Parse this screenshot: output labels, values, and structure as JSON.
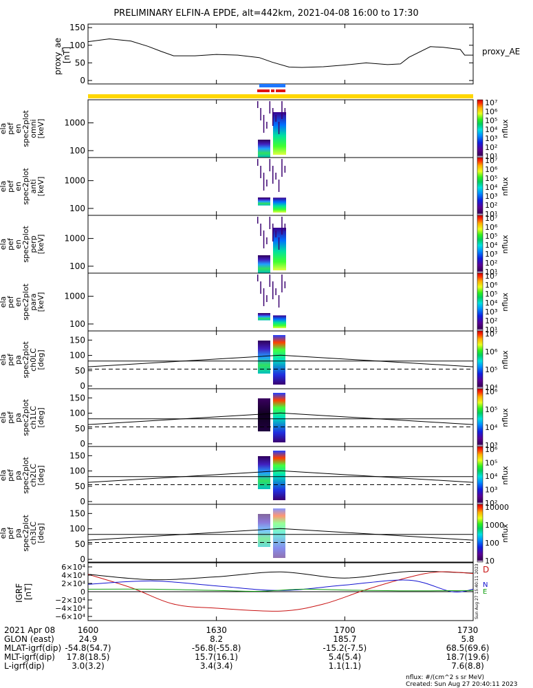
{
  "title": "PRELIMINARY ELFIN-A EPDE, alt=442km, 2021-04-08 16:00 to 17:30",
  "colors": {
    "frame": "#000000",
    "state_bar": "#ffd700",
    "science_blue": "#1e78ff",
    "science_red": "#e01010",
    "geo_x": "#c81010",
    "geo_y": "#1010d0",
    "geo_z": "#10a010",
    "geo_total": "#000000"
  },
  "chart_data": [
    {
      "type": "line",
      "panel": "proxy_ae",
      "ylabel": "proxy_ae [nT]",
      "right_label": "proxy_AE",
      "ylim": [
        0,
        160
      ],
      "yticks": [
        "0",
        "50",
        "100",
        "150"
      ],
      "x_minutes": [
        0,
        5,
        10,
        14,
        17,
        20,
        25,
        30,
        35,
        40,
        43,
        47,
        50,
        55,
        60,
        65,
        70,
        73,
        75,
        80,
        83,
        87,
        88,
        90
      ],
      "values": [
        110,
        118,
        112,
        97,
        83,
        70,
        70,
        74,
        72,
        65,
        52,
        38,
        37,
        39,
        44,
        50,
        45,
        47,
        66,
        96,
        94,
        88,
        72,
        72
      ]
    },
    {
      "type": "heatmap",
      "panel": "en_spec2plot_omni",
      "ylabel": "ela pef en spec2plot omni [keV]",
      "yticks": [
        "100",
        "1000"
      ],
      "colorbar_label": "nflux",
      "colorbar_ticks": [
        "10¹",
        "10²",
        "10³",
        "10⁴",
        "10⁵",
        "10⁶",
        "10⁷"
      ]
    },
    {
      "type": "heatmap",
      "panel": "en_spec2plot_anti",
      "ylabel": "ela pef en spec2plot anti [keV]",
      "yticks": [
        "100",
        "1000"
      ],
      "colorbar_label": "nflux",
      "colorbar_ticks": [
        "10¹",
        "10²",
        "10³",
        "10⁴",
        "10⁵",
        "10⁶",
        "10⁷"
      ]
    },
    {
      "type": "heatmap",
      "panel": "en_spec2plot_perp",
      "ylabel": "ela pef en spec2plot perp [keV]",
      "yticks": [
        "100",
        "1000"
      ],
      "colorbar_label": "nflux",
      "colorbar_ticks": [
        "10¹",
        "10²",
        "10³",
        "10⁴",
        "10⁵",
        "10⁶",
        "10⁷"
      ]
    },
    {
      "type": "heatmap",
      "panel": "en_spec2plot_para",
      "ylabel": "ela pef en spec2plot para [keV]",
      "yticks": [
        "100",
        "1000"
      ],
      "colorbar_label": "nflux",
      "colorbar_ticks": [
        "10¹",
        "10²",
        "10³",
        "10⁴",
        "10⁵",
        "10⁶",
        "10⁷"
      ]
    },
    {
      "type": "heatmap",
      "panel": "pa_spec2plot_ch0LC",
      "ylabel": "ela pef pa spec2plot ch0LC [deg]",
      "yticks": [
        "0",
        "50",
        "100",
        "150"
      ],
      "colorbar_label": "nflux",
      "colorbar_ticks": [
        "10⁴",
        "10⁵",
        "10⁶",
        "10⁷"
      ]
    },
    {
      "type": "heatmap",
      "panel": "pa_spec2plot_ch1LC",
      "ylabel": "ela pef pa spec2plot ch1LC [deg]",
      "yticks": [
        "0",
        "50",
        "100",
        "150"
      ],
      "colorbar_label": "nflux",
      "colorbar_ticks": [
        "10³",
        "10⁴",
        "10⁵",
        "10⁶"
      ]
    },
    {
      "type": "heatmap",
      "panel": "pa_spec2plot_ch2LC",
      "ylabel": "ela pef pa spec2plot ch2LC [deg]",
      "yticks": [
        "0",
        "50",
        "100",
        "150"
      ],
      "colorbar_label": "nflux",
      "colorbar_ticks": [
        "10²",
        "10³",
        "10⁴",
        "10⁵",
        "10⁶"
      ]
    },
    {
      "type": "heatmap",
      "panel": "pa_spec2plot_ch3LC",
      "ylabel": "ela pef pa spec2plot ch3LC [deg]",
      "yticks": [
        "0",
        "50",
        "100",
        "150"
      ],
      "colorbar_label": "nflux",
      "colorbar_ticks": [
        "10",
        "100",
        "1000",
        "10000"
      ]
    },
    {
      "type": "line",
      "panel": "igrf",
      "ylabel": "IGRF [nT]",
      "ylim": [
        -60000,
        60000
      ],
      "yticks": [
        "6×10⁴",
        "4×10⁴",
        "2×10⁴",
        "0",
        "−2×10⁴",
        "−4×10⁴",
        "−6×10⁴"
      ],
      "legend": [
        "D",
        "N",
        "E"
      ],
      "side_text": "Sun Aug 27 15:40:11 2023",
      "series": [
        {
          "name": "total",
          "x_minutes": [
            0,
            15,
            30,
            45,
            60,
            75,
            90
          ],
          "values": [
            42000,
            29000,
            36000,
            48000,
            33000,
            49000,
            45000
          ]
        },
        {
          "name": "red",
          "x_minutes": [
            0,
            10,
            20,
            30,
            45,
            55,
            65,
            75,
            82,
            90
          ],
          "values": [
            42000,
            10000,
            -30000,
            -40000,
            -47000,
            -30000,
            5000,
            35000,
            48000,
            44000
          ]
        },
        {
          "name": "blue",
          "x_minutes": [
            0,
            15,
            30,
            45,
            60,
            75,
            85,
            90
          ],
          "values": [
            18000,
            26000,
            14000,
            3000,
            16000,
            28000,
            0,
            6000
          ]
        },
        {
          "name": "green",
          "x_minutes": [
            0,
            15,
            30,
            40,
            50,
            60,
            75,
            90
          ],
          "values": [
            6000,
            6000,
            3000,
            1000,
            6000,
            4000,
            2000,
            3000
          ]
        }
      ]
    }
  ],
  "x_tick_labels": [
    "1600",
    "1630",
    "1700",
    "1730"
  ],
  "orbit_labels": {
    "row1": "2021 Apr 08",
    "row2": "GLON (east)",
    "row3": "MLAT-igrf(dip)",
    "row4": "MLT-igrf(dip)",
    "row5": "L-igrf(dip)"
  },
  "orbit_values": [
    [
      "24.9",
      "-54.8(54.7)",
      "17.8(18.5)",
      "3.0(3.2)"
    ],
    [
      "8.2",
      "-56.8(-55.8)",
      "15.7(16.1)",
      "3.4(3.4)"
    ],
    [
      "185.7",
      "-15.2(-7.5)",
      "5.4(5.4)",
      "1.1(1.1)"
    ],
    [
      "5.8",
      "68.5(69.6)",
      "18.7(19.6)",
      "7.6(8.8)"
    ]
  ],
  "footer": {
    "units": "nflux: #/(cm^2 s sr MeV)",
    "created": "Created: Sun Aug 27 20:40:11 2023"
  }
}
